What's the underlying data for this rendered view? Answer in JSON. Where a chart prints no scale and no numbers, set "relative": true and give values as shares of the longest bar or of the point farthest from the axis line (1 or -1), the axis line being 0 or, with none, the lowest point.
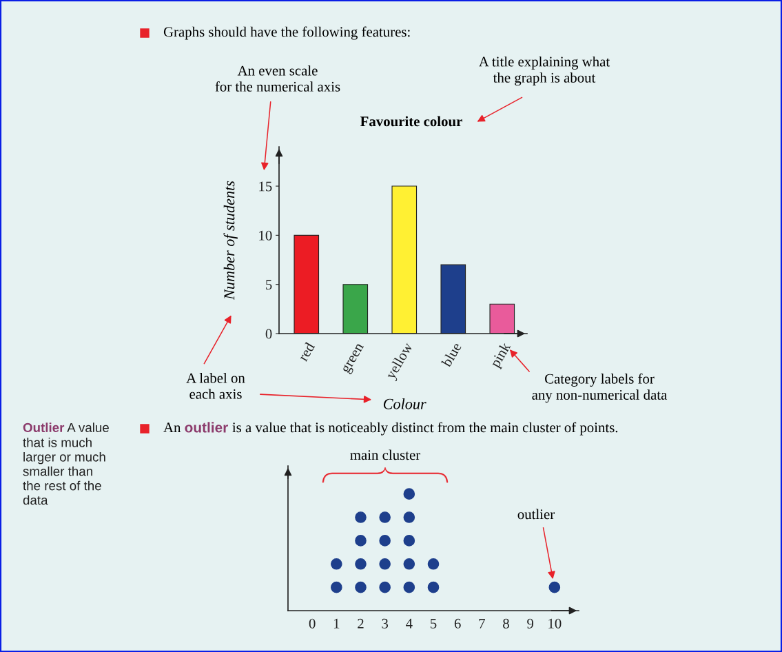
{
  "chart_data": [
    {
      "type": "bar",
      "title": "Favourite colour",
      "xlabel": "Colour",
      "ylabel": "Number of students",
      "categories": [
        "red",
        "green",
        "yellow",
        "blue",
        "pink"
      ],
      "values": [
        10,
        5,
        15,
        7,
        3
      ],
      "colors": [
        "#ec1c24",
        "#3aa64a",
        "#fff033",
        "#1e3f8c",
        "#e95b9b"
      ],
      "ylim": [
        0,
        19
      ],
      "yticks": [
        0,
        5,
        10,
        15
      ],
      "annotations": [
        "Graphs should have the following features:",
        "An even scale\nfor the numerical axis",
        "A title explaining what\nthe graph is about",
        "A label on\neach axis",
        "Category labels for\nany non-numerical data"
      ]
    },
    {
      "type": "scatter",
      "relative": true,
      "marker": "circle",
      "color": "#1e3f8c",
      "x": [
        1,
        1,
        2,
        2,
        2,
        2,
        3,
        3,
        3,
        3,
        4,
        4,
        4,
        4,
        4,
        5,
        5,
        10
      ],
      "values": [
        0.2,
        0.4,
        0.2,
        0.4,
        0.6,
        0.8,
        0.2,
        0.4,
        0.6,
        0.8,
        0.2,
        0.4,
        0.6,
        0.8,
        1.0,
        0.2,
        0.4,
        0.2
      ],
      "xlim": [
        -1,
        11
      ],
      "xticks": [
        0,
        1,
        2,
        3,
        4,
        5,
        6,
        7,
        8,
        9,
        10
      ],
      "tick_labels": "x",
      "annotations": [
        "Outlier",
        "A value",
        "that is much\nlarger or much\nsmaller than\nthe rest of the\ndata",
        "An",
        "outlier",
        "is a value that is noticeably distinct from the main cluster of points.",
        "main cluster",
        "outlier"
      ]
    }
  ]
}
